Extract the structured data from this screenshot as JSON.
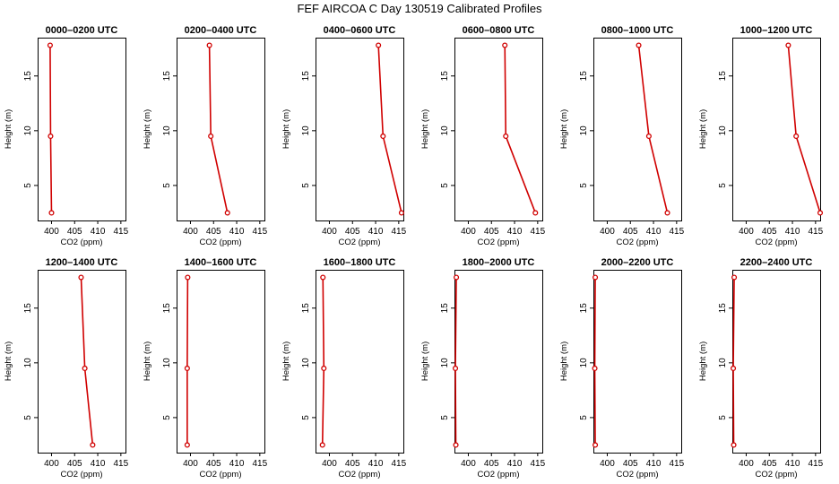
{
  "title": "FEF AIRCOA C  Day 130519  Calibrated Profiles",
  "chart_data": {
    "type": "line",
    "orientation": "vertical-profile",
    "xlabel": "CO2 (ppm)",
    "ylabel": "Height (m)",
    "xlim": [
      397,
      416
    ],
    "ylim": [
      1.8,
      18.5
    ],
    "xticks": [
      400,
      405,
      410,
      415
    ],
    "yticks": [
      5,
      10,
      15
    ],
    "heights": [
      2.5,
      9.5,
      17.8
    ],
    "line_color": "#d00000",
    "panels": [
      {
        "title": "0000–0200 UTC",
        "values": [
          400.0,
          399.8,
          399.7
        ]
      },
      {
        "title": "0200–0400 UTC",
        "values": [
          408.0,
          404.4,
          404.1
        ]
      },
      {
        "title": "0400–0600 UTC",
        "values": [
          415.6,
          411.6,
          410.6
        ]
      },
      {
        "title": "0600–0800 UTC",
        "values": [
          414.5,
          408.1,
          407.9
        ]
      },
      {
        "title": "0800–1000 UTC",
        "values": [
          413.0,
          409.0,
          406.8
        ]
      },
      {
        "title": "1000–1200 UTC",
        "values": [
          416.0,
          410.8,
          409.1
        ]
      },
      {
        "title": "1200–1400 UTC",
        "values": [
          408.9,
          407.2,
          406.4
        ]
      },
      {
        "title": "1400–1600 UTC",
        "values": [
          399.3,
          399.3,
          399.4
        ]
      },
      {
        "title": "1600–1800 UTC",
        "values": [
          398.5,
          398.8,
          398.6
        ]
      },
      {
        "title": "1800–2000 UTC",
        "values": [
          397.3,
          397.2,
          397.4
        ]
      },
      {
        "title": "2000–2200 UTC",
        "values": [
          397.4,
          397.3,
          397.4
        ]
      },
      {
        "title": "2200–2400 UTC",
        "values": [
          397.3,
          397.2,
          397.4
        ]
      }
    ]
  }
}
